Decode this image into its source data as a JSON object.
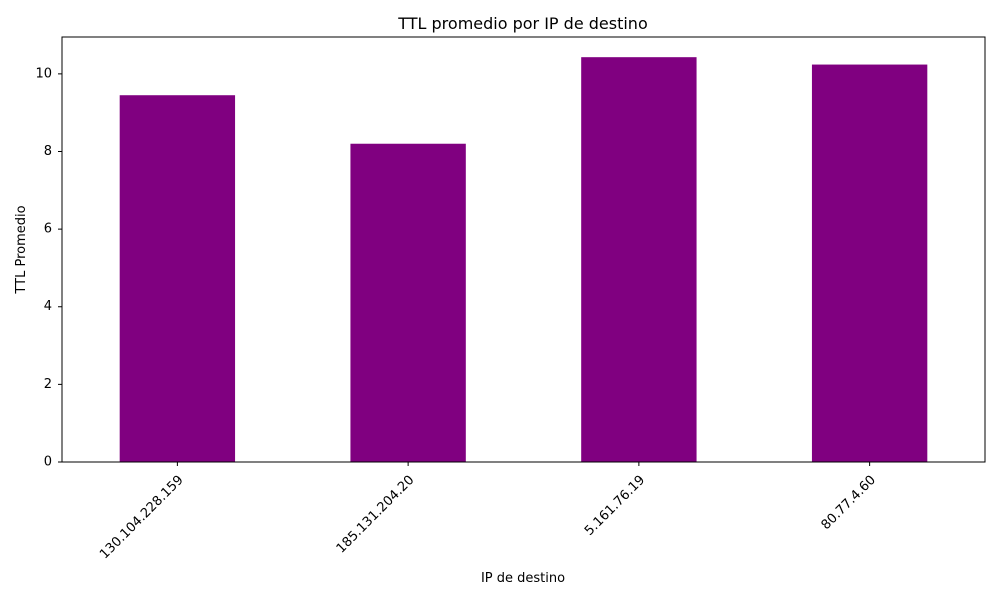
{
  "chart_data": {
    "type": "bar",
    "title": "TTL promedio por IP de destino",
    "xlabel": "IP de destino",
    "ylabel": "TTL Promedio",
    "categories": [
      "130.104.228.159",
      "185.131.204.20",
      "5.161.76.19",
      "80.77.4.60"
    ],
    "values": [
      9.45,
      8.2,
      10.43,
      10.24
    ],
    "ylim": [
      0,
      10.95
    ],
    "yticks": [
      0,
      2,
      4,
      6,
      8,
      10
    ],
    "bar_color": "#800080",
    "grid": false,
    "legend": "none"
  }
}
